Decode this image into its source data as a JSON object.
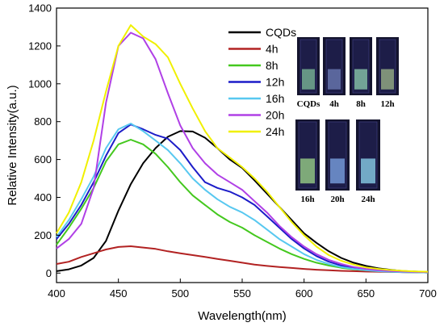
{
  "chart_data": {
    "type": "line",
    "xlabel": "Wavelength(nm)",
    "ylabel": "Relative Intensity(a.u.)",
    "xlim": [
      400,
      700
    ],
    "ylim": [
      -50,
      1400
    ],
    "x_ticks": [
      400,
      450,
      500,
      550,
      600,
      650,
      700
    ],
    "y_ticks": [
      0,
      200,
      400,
      600,
      800,
      1000,
      1200,
      1400
    ],
    "grid": false,
    "legend_position": "top-right",
    "x": [
      400,
      410,
      420,
      430,
      440,
      450,
      460,
      470,
      480,
      490,
      500,
      510,
      520,
      530,
      540,
      550,
      560,
      570,
      580,
      590,
      600,
      610,
      620,
      630,
      640,
      650,
      660,
      670,
      680,
      690,
      700
    ],
    "series": [
      {
        "name": "CQDs",
        "color": "#000000",
        "values": [
          10,
          20,
          40,
          80,
          170,
          330,
          470,
          580,
          660,
          720,
          750,
          748,
          715,
          660,
          600,
          555,
          490,
          420,
          350,
          280,
          210,
          160,
          115,
          80,
          55,
          38,
          25,
          17,
          11,
          8,
          6
        ]
      },
      {
        "name": "4h",
        "color": "#b22222",
        "values": [
          48,
          60,
          85,
          105,
          125,
          138,
          142,
          135,
          128,
          115,
          105,
          95,
          85,
          75,
          65,
          55,
          45,
          38,
          32,
          27,
          22,
          18,
          15,
          12,
          10,
          8,
          7,
          6,
          5,
          4,
          3
        ]
      },
      {
        "name": "8h",
        "color": "#44c81e",
        "values": [
          150,
          240,
          340,
          450,
          590,
          680,
          705,
          680,
          630,
          560,
          480,
          410,
          360,
          310,
          270,
          240,
          200,
          165,
          130,
          100,
          75,
          55,
          40,
          28,
          20,
          15,
          10,
          7,
          5,
          4,
          3
        ]
      },
      {
        "name": "12h",
        "color": "#1c1cc8",
        "values": [
          180,
          260,
          360,
          480,
          620,
          740,
          785,
          760,
          730,
          710,
          650,
          560,
          480,
          450,
          430,
          400,
          360,
          300,
          240,
          180,
          130,
          90,
          60,
          40,
          27,
          18,
          12,
          8,
          6,
          5,
          4
        ]
      },
      {
        "name": "16h",
        "color": "#58c8f0",
        "values": [
          190,
          280,
          390,
          510,
          660,
          760,
          790,
          750,
          700,
          650,
          580,
          500,
          440,
          390,
          350,
          320,
          280,
          230,
          180,
          140,
          100,
          70,
          48,
          32,
          22,
          15,
          10,
          7,
          5,
          4,
          3
        ]
      },
      {
        "name": "20h",
        "color": "#b040e6",
        "values": [
          130,
          180,
          260,
          450,
          900,
          1200,
          1270,
          1240,
          1130,
          950,
          780,
          660,
          580,
          520,
          480,
          440,
          380,
          320,
          250,
          190,
          140,
          100,
          70,
          48,
          32,
          22,
          15,
          11,
          8,
          6,
          5
        ]
      },
      {
        "name": "24h",
        "color": "#f0f000",
        "values": [
          210,
          320,
          480,
          700,
          960,
          1200,
          1310,
          1250,
          1210,
          1140,
          1000,
          870,
          750,
          660,
          610,
          560,
          500,
          430,
          350,
          270,
          200,
          140,
          95,
          65,
          45,
          30,
          22,
          16,
          12,
          9,
          7
        ]
      }
    ]
  },
  "inset": {
    "vial_labels_top": [
      "CQDs",
      "4h",
      "8h",
      "12h"
    ],
    "vial_labels_bottom": [
      "16h",
      "20h",
      "24h"
    ],
    "glow_colors_top": [
      "#7fbf9a",
      "#6f7fb8",
      "#8fd0b0",
      "#9fb88a"
    ],
    "glow_colors_bottom": [
      "#9fd88a",
      "#7fa8e8",
      "#8fd8f0"
    ]
  }
}
